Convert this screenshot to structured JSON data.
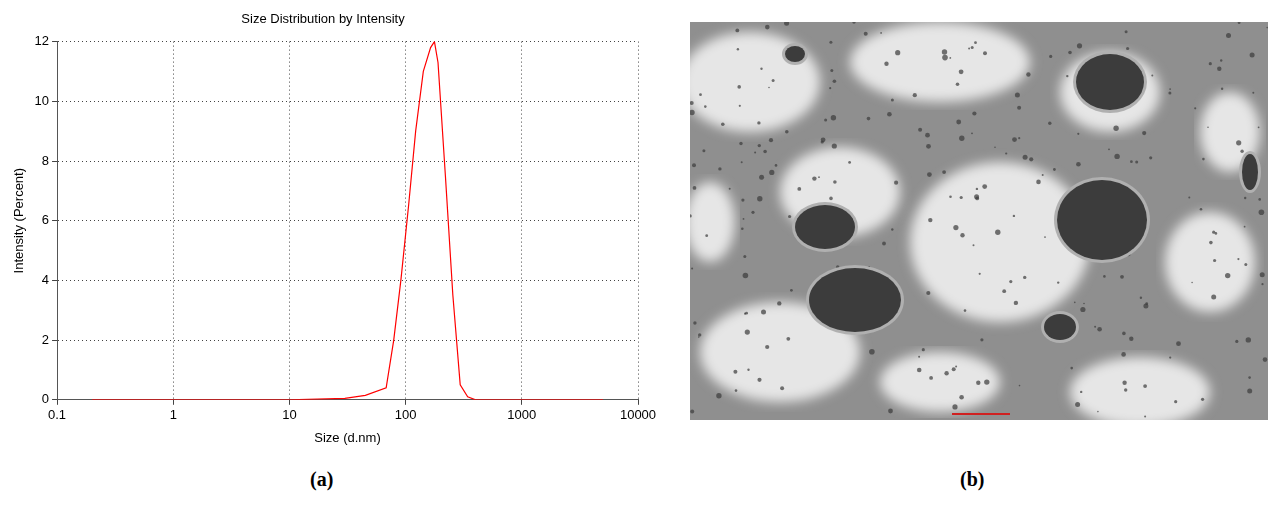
{
  "chart_data": {
    "type": "line",
    "title": "Size Distribution by Intensity",
    "x_label": "Size (d.nm)",
    "y_label": "Intensity (Percent)",
    "x": [
      0.2,
      1,
      10,
      30,
      45,
      68,
      79,
      91,
      106,
      122,
      142,
      164,
      177,
      190,
      220,
      255,
      295,
      342,
      400,
      1000,
      5000
    ],
    "values": [
      0,
      0,
      0,
      0.05,
      0.15,
      0.4,
      2.0,
      4.0,
      6.5,
      9.0,
      11.0,
      11.8,
      12.0,
      11.3,
      7.5,
      3.5,
      0.5,
      0.1,
      0,
      0,
      0
    ],
    "color": "#ff0000",
    "log": "x",
    "grid": true,
    "xlim": [
      0.1,
      10000
    ],
    "xticks": [
      0.1,
      1,
      10,
      100,
      1000,
      10000
    ],
    "ylim": [
      0,
      12
    ],
    "yticks": [
      0,
      2,
      4,
      6,
      8,
      10,
      12
    ]
  },
  "figure": {
    "panel_labels": [
      "(a)",
      "(b)"
    ]
  }
}
